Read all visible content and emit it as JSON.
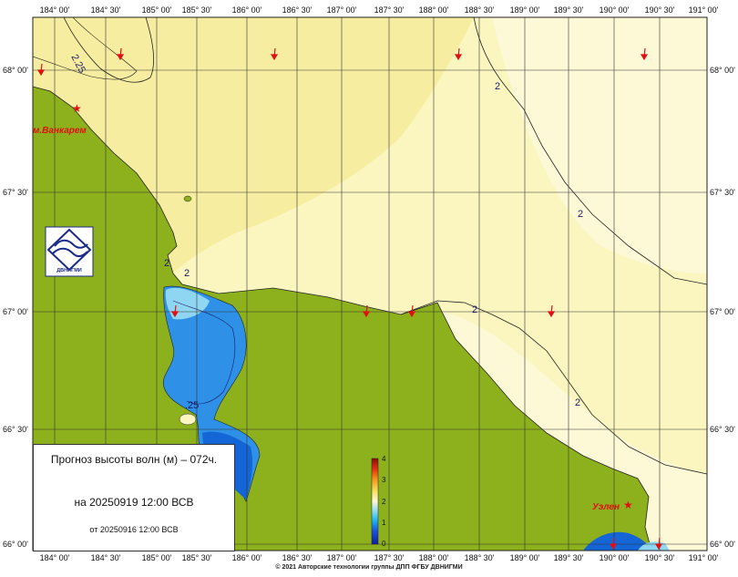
{
  "map": {
    "lon_ticks_top": [
      "184° 00'",
      "184° 30'",
      "185° 00'",
      "185° 30'",
      "186° 00'",
      "186° 30'",
      "187° 00'",
      "187° 30'",
      "188° 00'",
      "188° 30'",
      "189° 00'",
      "189° 30'",
      "190° 00'",
      "190° 30'",
      "191° 00'"
    ],
    "lon_ticks_bottom": [
      "184° 00'",
      "184° 30'",
      "185° 00'",
      "185° 30'",
      "186° 00'",
      "186° 30'",
      "187° 00'",
      "187° 30'",
      "188° 00'",
      "188° 30'",
      "189° 00'",
      "189° 30'",
      "190° 00'",
      "190° 30'",
      "191° 00'"
    ],
    "lat_ticks": [
      "68° 00'",
      "67° 30'",
      "67° 00'",
      "66° 30'",
      "66° 00'"
    ],
    "contour_labels": [
      "2.25",
      "2",
      "2",
      "2",
      "2",
      "2",
      "2",
      ".25"
    ],
    "places": {
      "vankarem": "м.Ванкарем",
      "uelen": "Уэлен"
    },
    "logo_text": "ДВНИГМИ",
    "colors": {
      "land": "#8db11c",
      "sea_light": "#fbf6c0",
      "sea_mid": "#f7eda0",
      "sea_pale": "#fdf8d6",
      "sea_blue": "#2e90e6",
      "sea_deep": "#1465d6",
      "arrow": "#e01010"
    },
    "colorbar": {
      "ticks": [
        "4",
        "3",
        "2",
        "1",
        "0"
      ],
      "min": 0,
      "max": 4
    }
  },
  "panel": {
    "title": "Прогноз высоты волн (м) – 072ч.",
    "valid_time": "на 20250919 12:00 ВСВ",
    "base_time": "от 20250916 12:00 ВСВ"
  },
  "footer": {
    "copyright": "© 2021 Авторские технологии группы ДПП ФГБУ ДВНИГМИ"
  }
}
